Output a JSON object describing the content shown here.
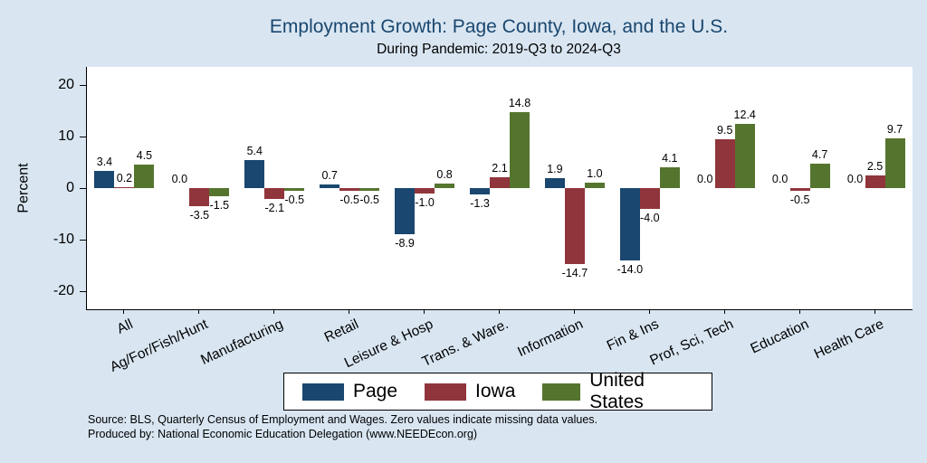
{
  "title": "Employment Growth: Page County, Iowa, and the U.S.",
  "subtitle": "During Pandemic: 2019-Q3 to 2024-Q3",
  "source_line1": "Source: BLS, Quarterly Census of Employment and Wages. Zero values indicate missing data values.",
  "source_line2": "Produced by: National Economic Education Delegation (www.NEEDEcon.org)",
  "colors": {
    "background": "#d9e6f2",
    "title_text": "#1a476f",
    "page_bar": "#1a476f",
    "iowa_bar": "#90353b",
    "us_bar": "#55752f"
  },
  "chart_data": {
    "type": "bar",
    "title": "Employment Growth: Page County, Iowa, and the U.S.",
    "subtitle": "During Pandemic: 2019-Q3 to 2024-Q3",
    "xlabel": "",
    "ylabel": "Percent",
    "categories": [
      "All",
      "Ag/For/Fish/Hunt",
      "Manufacturing",
      "Retail",
      "Leisure & Hosp",
      "Trans. & Ware.",
      "Information",
      "Fin & Ins",
      "Prof, Sci, Tech",
      "Education",
      "Health Care"
    ],
    "series": [
      {
        "name": "Page",
        "color": "#1a476f",
        "values": [
          3.4,
          0.0,
          5.4,
          0.7,
          -8.9,
          -1.3,
          1.9,
          -14.0,
          0.0,
          0.0,
          0.0
        ]
      },
      {
        "name": "Iowa",
        "color": "#90353b",
        "values": [
          0.2,
          -3.5,
          -2.1,
          -0.5,
          -1.0,
          2.1,
          -14.7,
          -4.0,
          9.5,
          -0.5,
          2.5
        ]
      },
      {
        "name": "United States",
        "color": "#55752f",
        "values": [
          4.5,
          -1.5,
          -0.5,
          -0.5,
          0.8,
          14.8,
          1.0,
          4.1,
          12.4,
          4.7,
          9.7
        ]
      }
    ],
    "yticks": [
      20,
      10,
      0,
      -10,
      -20
    ],
    "ylim": [
      -23.5,
      23.5
    ],
    "grid": false,
    "legend_position": "bottom",
    "bar_labels": true
  }
}
